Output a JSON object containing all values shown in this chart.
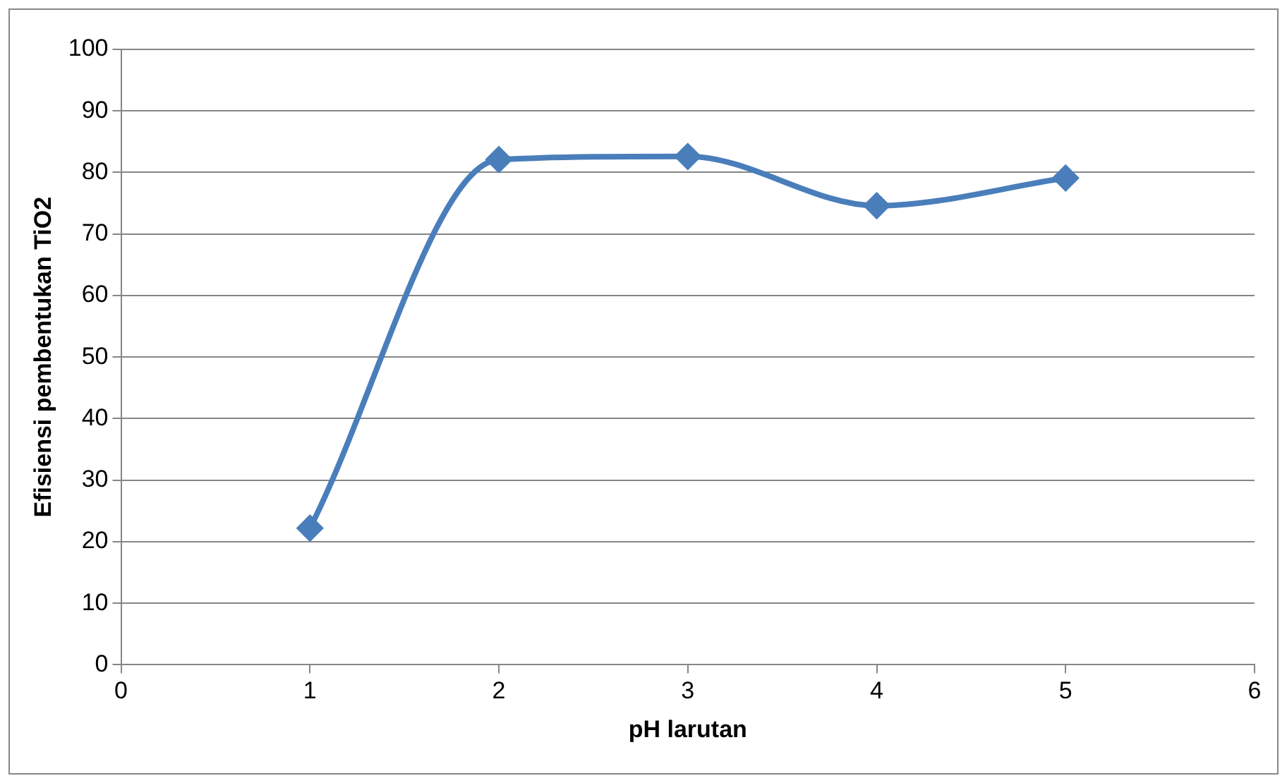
{
  "chart_data": {
    "type": "line",
    "xlabel": "pH larutan",
    "ylabel": "Efisiensi pembentukan TiO2",
    "x": [
      1,
      2,
      3,
      4,
      5
    ],
    "series": [
      {
        "color": "#4a7ebb",
        "values": [
          22.2,
          82.1,
          82.6,
          74.6,
          79.1
        ]
      }
    ],
    "xlim": [
      0,
      6
    ],
    "xticks": [
      0,
      1,
      2,
      3,
      4,
      5,
      6
    ],
    "ylim": [
      0,
      100
    ],
    "yticks": [
      0,
      10,
      20,
      30,
      40,
      50,
      60,
      70,
      80,
      90,
      100
    ],
    "grid": "y",
    "legend": false,
    "marker": "diamond",
    "line_style": "solid"
  }
}
